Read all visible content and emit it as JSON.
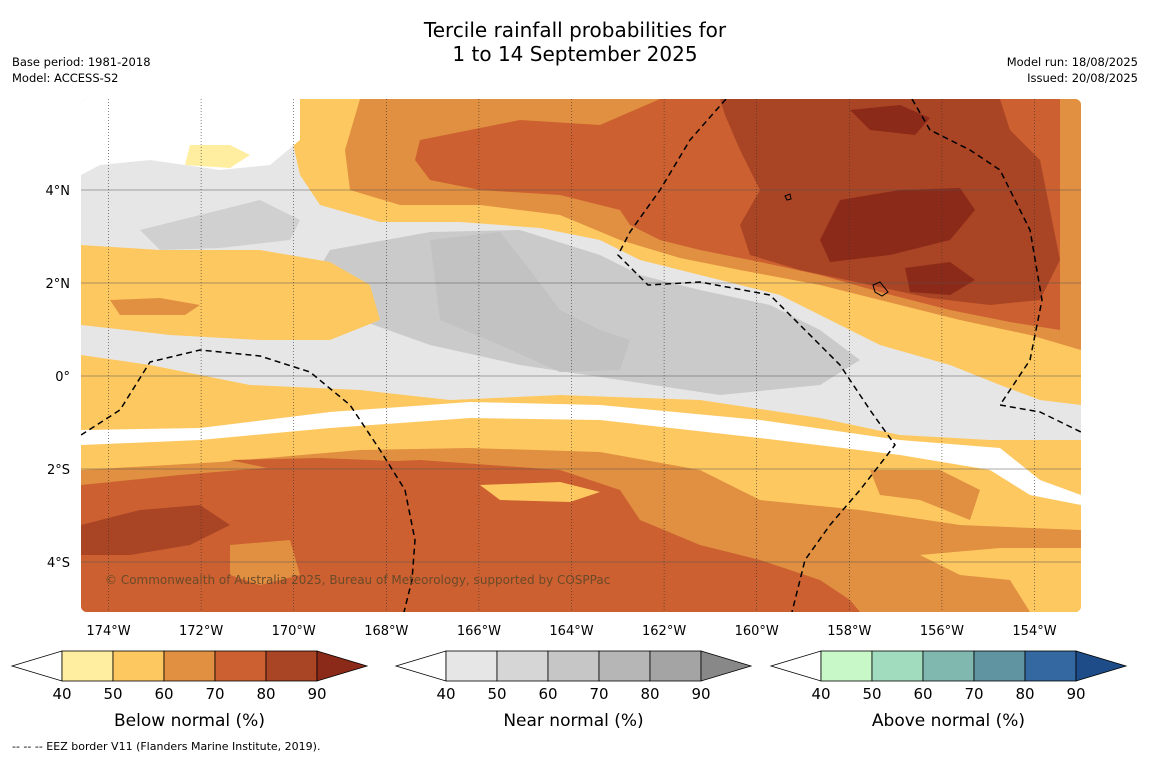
{
  "title_line1": "Tercile rainfall probabilities for",
  "title_line2": "1 to 14 September 2025",
  "base_period": "Base period: 1981-2018",
  "model": "Model: ACCESS-S2",
  "model_run": "Model run: 18/08/2025",
  "issued": "Issued: 20/08/2025",
  "copyright": "© Commonwealth of Australia 2025, Bureau of Meteorology, supported by COSPPac",
  "footnote": "--  --  -- EEZ border V11 (Flanders Marine Institute, 2019).",
  "lon_labels": [
    "174°W",
    "172°W",
    "170°W",
    "168°W",
    "166°W",
    "164°W",
    "162°W",
    "160°W",
    "158°W",
    "156°W",
    "154°W"
  ],
  "lat_labels": [
    "4°N",
    "2°N",
    "0°",
    "2°S",
    "4°S"
  ],
  "colorbars": [
    {
      "name": "Below normal (%)",
      "ticks": [
        "40",
        "50",
        "60",
        "70",
        "80",
        "90"
      ],
      "colors": [
        "#ffffff",
        "#ffeda0",
        "#fec860",
        "#e09040",
        "#cc6030",
        "#a94424",
        "#8b2a18"
      ]
    },
    {
      "name": "Near normal (%)",
      "ticks": [
        "40",
        "50",
        "60",
        "70",
        "80",
        "90"
      ],
      "colors": [
        "#ffffff",
        "#e6e6e6",
        "#d6d6d6",
        "#c6c6c6",
        "#b6b6b6",
        "#a4a4a4",
        "#888888"
      ]
    },
    {
      "name": "Above normal (%)",
      "ticks": [
        "40",
        "50",
        "60",
        "70",
        "80",
        "90"
      ],
      "colors": [
        "#ffffff",
        "#c8f8c8",
        "#a2dcbf",
        "#80b8b0",
        "#5f94a0",
        "#3468a0",
        "#1d4c88"
      ]
    }
  ]
}
